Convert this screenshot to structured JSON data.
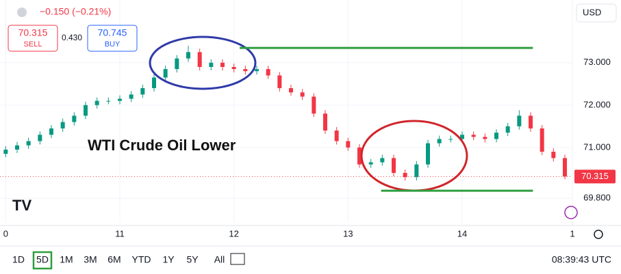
{
  "chart_data": {
    "type": "candlestick",
    "annotation": "WTI Crude Oil Lower",
    "currency": "USD",
    "x": [
      0,
      1,
      2,
      3,
      4,
      5,
      6,
      7,
      8,
      9,
      10,
      11,
      12,
      13,
      14,
      15,
      16,
      17,
      18,
      19,
      20,
      21,
      22,
      23,
      24,
      25,
      26,
      27,
      28,
      29,
      30,
      31,
      32,
      33,
      34,
      35,
      36,
      37,
      38,
      39,
      40,
      41,
      42,
      43,
      44,
      45,
      46,
      47,
      48,
      49
    ],
    "open": [
      70.85,
      70.95,
      71.05,
      71.15,
      71.3,
      71.45,
      71.6,
      71.75,
      72.0,
      72.1,
      72.1,
      72.15,
      72.25,
      72.4,
      72.65,
      72.85,
      73.1,
      73.25,
      72.9,
      73.0,
      72.9,
      72.85,
      72.8,
      72.85,
      72.7,
      72.4,
      72.3,
      72.2,
      71.8,
      71.4,
      71.15,
      71.0,
      70.6,
      70.65,
      70.75,
      70.4,
      70.3,
      70.6,
      71.1,
      71.2,
      71.2,
      71.3,
      71.25,
      71.2,
      71.35,
      71.5,
      71.75,
      71.45,
      70.9,
      70.75
    ],
    "high": [
      71.03,
      71.13,
      71.23,
      71.38,
      71.53,
      71.68,
      71.83,
      72.08,
      72.18,
      72.18,
      72.23,
      72.33,
      72.48,
      72.73,
      72.93,
      73.18,
      73.4,
      73.33,
      73.08,
      73.08,
      72.98,
      72.93,
      72.93,
      72.93,
      72.78,
      72.48,
      72.38,
      72.28,
      71.88,
      71.48,
      71.23,
      71.08,
      70.73,
      70.83,
      70.83,
      70.48,
      70.68,
      71.18,
      71.28,
      71.28,
      71.38,
      71.38,
      71.33,
      71.43,
      71.58,
      71.88,
      71.83,
      71.53,
      70.98,
      70.83
    ],
    "low": [
      70.77,
      70.87,
      70.97,
      71.07,
      71.22,
      71.37,
      71.52,
      71.67,
      71.92,
      72.02,
      72.02,
      72.07,
      72.17,
      72.32,
      72.57,
      72.77,
      73.02,
      72.82,
      72.82,
      72.82,
      72.77,
      72.72,
      72.72,
      72.62,
      72.32,
      72.22,
      72.12,
      71.72,
      71.32,
      71.07,
      70.92,
      70.52,
      70.52,
      70.57,
      70.32,
      70.22,
      70.22,
      70.52,
      71.02,
      71.12,
      71.12,
      71.17,
      71.12,
      71.12,
      71.27,
      71.42,
      71.37,
      70.82,
      70.67,
      70.25
    ],
    "close": [
      70.95,
      71.05,
      71.15,
      71.3,
      71.45,
      71.6,
      71.75,
      72.0,
      72.1,
      72.1,
      72.15,
      72.25,
      72.4,
      72.65,
      72.85,
      73.1,
      73.25,
      72.9,
      73.0,
      72.9,
      72.85,
      72.8,
      72.85,
      72.7,
      72.4,
      72.3,
      72.2,
      71.8,
      71.4,
      71.15,
      71.0,
      70.6,
      70.65,
      70.75,
      70.4,
      70.3,
      70.6,
      71.1,
      71.2,
      71.2,
      71.3,
      71.25,
      71.2,
      71.35,
      71.5,
      71.75,
      71.45,
      70.9,
      70.75,
      70.315
    ],
    "up_color": "#089981",
    "down_color": "#f23645",
    "levels": [
      {
        "value": 73.35,
        "from": 20.5,
        "to": 46.2,
        "color": "#2e9e3e"
      },
      {
        "value": 69.98,
        "from": 32.9,
        "to": 46.2,
        "color": "#2e9e3e"
      }
    ],
    "xlim": [
      -0.5,
      49.6
    ],
    "ylim": [
      69.24,
      74.48
    ],
    "xticks": [
      {
        "value": 0,
        "label": "0"
      },
      {
        "value": 10,
        "label": "11"
      },
      {
        "value": 20,
        "label": "12"
      },
      {
        "value": 30,
        "label": "13"
      },
      {
        "value": 40,
        "label": "14"
      },
      {
        "value": 50,
        "label": "1"
      }
    ],
    "yticks": [
      {
        "value": 69.8,
        "label": "69.800"
      },
      {
        "value": 71,
        "label": "71.000"
      },
      {
        "value": 72,
        "label": "72.000"
      },
      {
        "value": 73,
        "label": "73.000"
      }
    ]
  },
  "header": {
    "change": "−0.150 (−0.21%)",
    "sell_price": "70.315",
    "sell": "SELL",
    "spread": "0.430",
    "buy_price": "70.745",
    "buy": "BUY"
  },
  "toolbar": {
    "ranges": [
      "1D",
      "5D",
      "1M",
      "3M",
      "6M",
      "YTD",
      "1Y",
      "5Y",
      "All"
    ],
    "active": "5D",
    "time": "08:39:43 UTC"
  }
}
